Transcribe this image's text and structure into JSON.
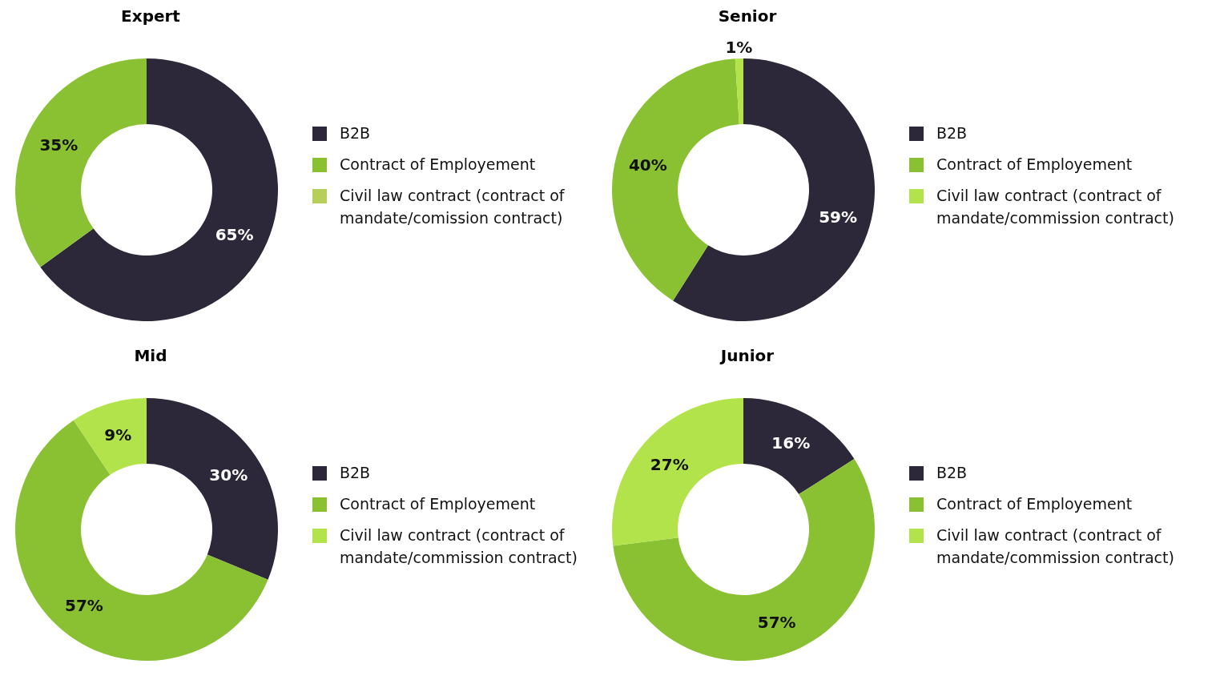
{
  "chart_data": [
    {
      "type": "donut",
      "title": "Expert",
      "categories": [
        "B2B",
        "Contract of Employement",
        "Civil law contract (contract of mandate/comission contract)"
      ],
      "values": [
        65,
        35,
        0
      ],
      "colors": [
        "#2d2839",
        "#8ac132",
        "#b5cf5a"
      ],
      "value_labels": [
        "65%",
        "35%",
        null
      ],
      "legend": "right"
    },
    {
      "type": "donut",
      "title": "Senior",
      "categories": [
        "B2B",
        "Contract of Employement",
        "Civil law contract (contract of mandate/commission contract)"
      ],
      "values": [
        59,
        40,
        1
      ],
      "colors": [
        "#2d2839",
        "#8ac132",
        "#b3e34b"
      ],
      "value_labels": [
        "59%",
        "40%",
        "1%"
      ],
      "legend": "right"
    },
    {
      "type": "donut",
      "title": "Mid",
      "categories": [
        "B2B",
        "Contract of Employement",
        "Civil law contract (contract of mandate/commission contract)"
      ],
      "values": [
        30,
        57,
        9
      ],
      "colors": [
        "#2d2839",
        "#8ac132",
        "#b3e34b"
      ],
      "value_labels": [
        "30%",
        "57%",
        "9%"
      ],
      "legend": "right"
    },
    {
      "type": "donut",
      "title": "Junior",
      "categories": [
        "B2B",
        "Contract of Employement",
        "Civil law contract (contract of mandate/commission contract)"
      ],
      "values": [
        16,
        57,
        27
      ],
      "colors": [
        "#2d2839",
        "#8ac132",
        "#b3e34b"
      ],
      "value_labels": [
        "16%",
        "57%",
        "27%"
      ],
      "legend": "right"
    }
  ]
}
